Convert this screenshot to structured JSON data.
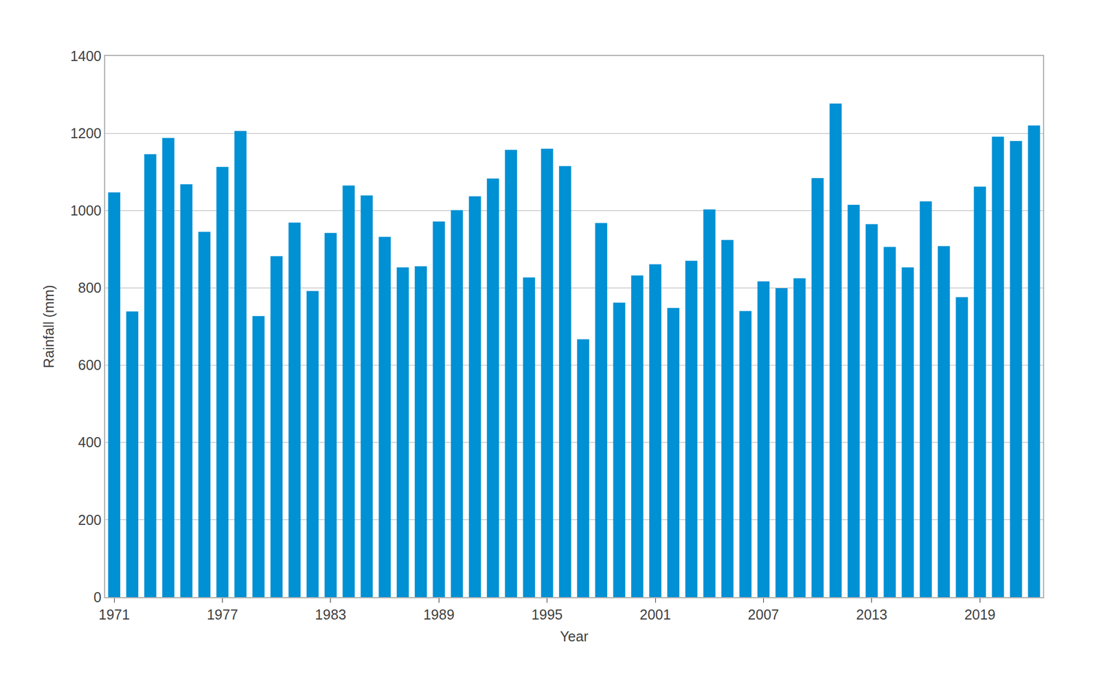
{
  "chart_data": {
    "type": "bar",
    "x_label": "Year",
    "y_label": "Rainfall (mm)",
    "x": [
      1971,
      1972,
      1973,
      1974,
      1975,
      1976,
      1977,
      1978,
      1979,
      1980,
      1981,
      1982,
      1983,
      1984,
      1985,
      1986,
      1987,
      1988,
      1989,
      1990,
      1991,
      1992,
      1993,
      1994,
      1995,
      1996,
      1997,
      1998,
      1999,
      2000,
      2001,
      2002,
      2003,
      2004,
      2005,
      2006,
      2007,
      2008,
      2009,
      2010,
      2011,
      2012,
      2013,
      2014,
      2015,
      2016,
      2017,
      2018,
      2019,
      2020,
      2021,
      2022
    ],
    "values": [
      1047,
      739,
      1146,
      1188,
      1068,
      945,
      1113,
      1206,
      727,
      882,
      969,
      792,
      942,
      1065,
      1039,
      932,
      853,
      856,
      972,
      1001,
      1037,
      1083,
      1157,
      827,
      1160,
      1115,
      667,
      968,
      762,
      832,
      861,
      748,
      870,
      1003,
      924,
      740,
      817,
      799,
      825,
      1084,
      1277,
      1015,
      965,
      906,
      853,
      1024,
      908,
      776,
      1062,
      1191,
      1180,
      1220
    ],
    "color": "#0090d4",
    "xlim": [
      1970.5,
      2022.5
    ],
    "xticks": [
      1971,
      1977,
      1983,
      1989,
      1995,
      2001,
      2007,
      2013,
      2019
    ],
    "ylim": [
      0,
      1400
    ],
    "yticks": [
      0,
      200,
      400,
      600,
      800,
      1000,
      1200,
      1400
    ],
    "grid": true
  }
}
